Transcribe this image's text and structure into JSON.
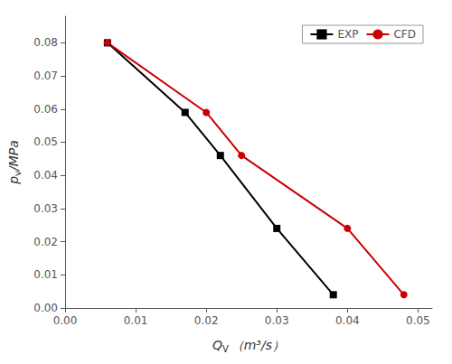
{
  "chart_data": {
    "type": "line",
    "xlabel": "QV （m³/s）",
    "ylabel": "pv/MPa",
    "series": [
      {
        "name": "EXP",
        "color": "#000000",
        "marker": "square",
        "line_style": "solid",
        "x": [
          0.006,
          0.017,
          0.022,
          0.03,
          0.038
        ],
        "values": [
          0.08,
          0.059,
          0.046,
          0.024,
          0.004
        ]
      },
      {
        "name": "CFD",
        "color": "#cc0000",
        "marker": "circle",
        "line_style": "solid",
        "x": [
          0.006,
          0.02,
          0.025,
          0.04,
          0.048
        ],
        "values": [
          0.08,
          0.059,
          0.046,
          0.024,
          0.004
        ]
      }
    ],
    "xlim": [
      0.0,
      0.052
    ],
    "ylim": [
      0.0,
      0.088
    ],
    "xticks": [
      {
        "value": 0,
        "label": "0.00"
      },
      0.01,
      0.02,
      0.03,
      0.04,
      0.05
    ],
    "yticks": [
      {
        "value": 0,
        "label": "0.00"
      },
      0.01,
      0.02,
      0.03,
      0.04,
      0.05,
      0.06,
      0.07,
      0.08
    ],
    "grid": false,
    "legend": "upper right"
  }
}
